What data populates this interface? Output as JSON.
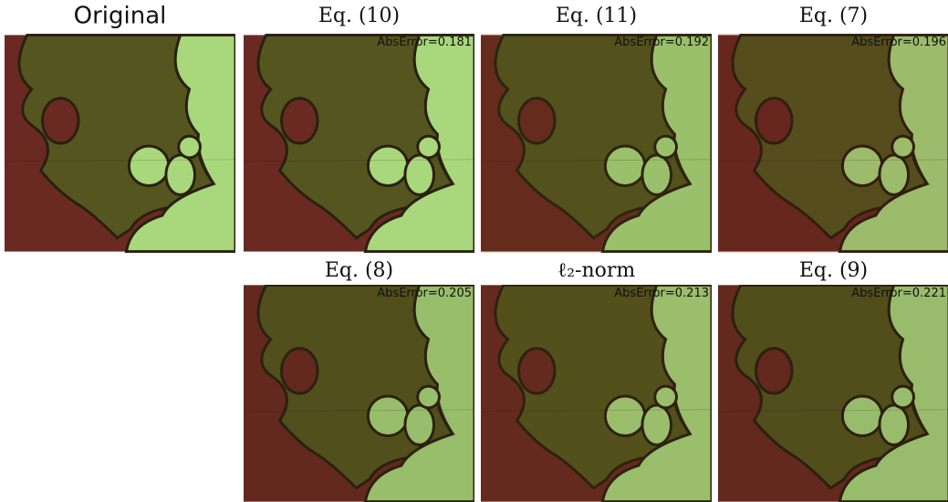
{
  "panels": [
    {
      "title": "Original"
    },
    {
      "title": "Eq. (10)",
      "label": "AbsError=0.181"
    },
    {
      "title": "Eq. (11)",
      "label": "AbsError=0.192"
    },
    {
      "title": "Eq. (7)",
      "label": "AbsError=0.196"
    },
    {
      "title": "Eq. (8)",
      "label": "AbsError=0.205"
    },
    {
      "title": "ℓ₂-norm",
      "label": "AbsError=0.213"
    },
    {
      "title": "Eq. (9)",
      "label": "AbsError=0.221"
    }
  ]
}
